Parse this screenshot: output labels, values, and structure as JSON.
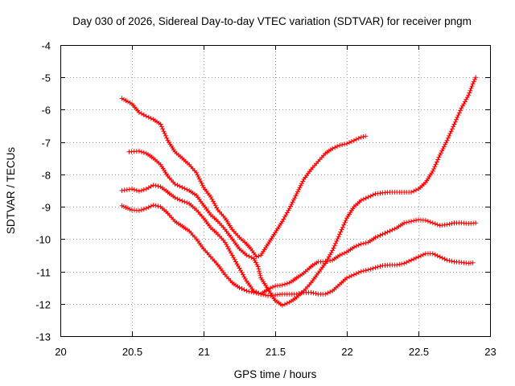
{
  "chart_data": {
    "type": "scatter",
    "title": "Day 030 of 2026, Sidereal Day-to-day VTEC variation (SDTVAR) for receiver pngm",
    "xlabel": "GPS time / hours",
    "ylabel": "SDTVAR / TECUs",
    "xlim": [
      20,
      23
    ],
    "ylim": [
      -13,
      -4
    ],
    "xticks": [
      "20",
      "20.5",
      "21",
      "21.5",
      "22",
      "22.5",
      "23"
    ],
    "yticks": [
      "-13",
      "-12",
      "-11",
      "-10",
      "-9",
      "-8",
      "-7",
      "-6",
      "-5",
      "-4"
    ],
    "xtick_values": [
      20,
      20.5,
      21,
      21.5,
      22,
      22.5,
      23
    ],
    "ytick_values": [
      -13,
      -12,
      -11,
      -10,
      -9,
      -8,
      -7,
      -6,
      -5,
      -4
    ],
    "grid": true,
    "marker": "plus",
    "color": "#ff0000",
    "series": [
      {
        "points": [
          [
            20.43,
            -5.65
          ],
          [
            20.5,
            -5.82
          ],
          [
            20.55,
            -6.08
          ],
          [
            20.6,
            -6.2
          ],
          [
            20.65,
            -6.3
          ],
          [
            20.7,
            -6.45
          ],
          [
            20.75,
            -6.95
          ],
          [
            20.8,
            -7.3
          ],
          [
            20.85,
            -7.5
          ],
          [
            20.9,
            -7.7
          ],
          [
            20.95,
            -7.95
          ],
          [
            21.0,
            -8.4
          ],
          [
            21.05,
            -8.7
          ],
          [
            21.1,
            -9.1
          ],
          [
            21.15,
            -9.35
          ],
          [
            21.2,
            -9.7
          ],
          [
            21.25,
            -9.95
          ],
          [
            21.3,
            -10.15
          ],
          [
            21.33,
            -10.3
          ],
          [
            21.37,
            -10.55
          ],
          [
            21.4,
            -10.5
          ],
          [
            21.45,
            -10.15
          ],
          [
            21.5,
            -9.8
          ],
          [
            21.55,
            -9.45
          ],
          [
            21.6,
            -9.05
          ],
          [
            21.65,
            -8.6
          ],
          [
            21.7,
            -8.15
          ],
          [
            21.75,
            -7.85
          ],
          [
            21.8,
            -7.6
          ],
          [
            21.85,
            -7.35
          ],
          [
            21.9,
            -7.2
          ],
          [
            21.95,
            -7.1
          ],
          [
            22.0,
            -7.05
          ],
          [
            22.05,
            -6.95
          ],
          [
            22.1,
            -6.85
          ],
          [
            22.13,
            -6.82
          ]
        ]
      },
      {
        "points": [
          [
            20.48,
            -7.3
          ],
          [
            20.55,
            -7.28
          ],
          [
            20.6,
            -7.35
          ],
          [
            20.65,
            -7.5
          ],
          [
            20.7,
            -7.7
          ],
          [
            20.75,
            -8.05
          ],
          [
            20.8,
            -8.3
          ],
          [
            20.85,
            -8.4
          ],
          [
            20.9,
            -8.5
          ],
          [
            20.95,
            -8.65
          ],
          [
            21.0,
            -8.95
          ],
          [
            21.05,
            -9.25
          ],
          [
            21.1,
            -9.45
          ],
          [
            21.15,
            -9.7
          ],
          [
            21.2,
            -10.0
          ],
          [
            21.25,
            -10.3
          ],
          [
            21.3,
            -10.5
          ],
          [
            21.35,
            -10.6
          ],
          [
            21.38,
            -10.85
          ],
          [
            21.4,
            -11.2
          ],
          [
            21.45,
            -11.55
          ],
          [
            21.5,
            -11.9
          ],
          [
            21.55,
            -12.05
          ],
          [
            21.6,
            -11.95
          ],
          [
            21.65,
            -11.8
          ],
          [
            21.7,
            -11.6
          ],
          [
            21.75,
            -11.35
          ],
          [
            21.8,
            -11.05
          ],
          [
            21.85,
            -10.75
          ],
          [
            21.9,
            -10.35
          ],
          [
            21.95,
            -9.85
          ],
          [
            22.0,
            -9.35
          ],
          [
            22.05,
            -9.0
          ],
          [
            22.1,
            -8.8
          ],
          [
            22.15,
            -8.7
          ],
          [
            22.2,
            -8.6
          ],
          [
            22.25,
            -8.57
          ],
          [
            22.3,
            -8.55
          ],
          [
            22.35,
            -8.55
          ],
          [
            22.4,
            -8.55
          ],
          [
            22.45,
            -8.55
          ],
          [
            22.5,
            -8.45
          ],
          [
            22.55,
            -8.25
          ],
          [
            22.6,
            -7.9
          ],
          [
            22.65,
            -7.4
          ],
          [
            22.7,
            -6.95
          ],
          [
            22.75,
            -6.45
          ],
          [
            22.8,
            -5.95
          ],
          [
            22.85,
            -5.55
          ],
          [
            22.88,
            -5.2
          ],
          [
            22.9,
            -5.0
          ]
        ]
      },
      {
        "points": [
          [
            20.43,
            -8.5
          ],
          [
            20.5,
            -8.45
          ],
          [
            20.55,
            -8.52
          ],
          [
            20.6,
            -8.45
          ],
          [
            20.65,
            -8.33
          ],
          [
            20.7,
            -8.38
          ],
          [
            20.75,
            -8.55
          ],
          [
            20.8,
            -8.72
          ],
          [
            20.85,
            -8.82
          ],
          [
            20.9,
            -8.9
          ],
          [
            20.95,
            -9.1
          ],
          [
            21.0,
            -9.35
          ],
          [
            21.05,
            -9.65
          ],
          [
            21.1,
            -9.85
          ],
          [
            21.15,
            -10.1
          ],
          [
            21.2,
            -10.5
          ],
          [
            21.25,
            -10.9
          ],
          [
            21.3,
            -11.3
          ],
          [
            21.35,
            -11.6
          ],
          [
            21.4,
            -11.7
          ],
          [
            21.45,
            -11.55
          ],
          [
            21.5,
            -11.45
          ],
          [
            21.55,
            -11.42
          ],
          [
            21.6,
            -11.35
          ],
          [
            21.65,
            -11.2
          ],
          [
            21.7,
            -11.05
          ],
          [
            21.75,
            -10.85
          ],
          [
            21.8,
            -10.7
          ],
          [
            21.85,
            -10.7
          ],
          [
            21.9,
            -10.65
          ],
          [
            21.95,
            -10.5
          ],
          [
            22.0,
            -10.4
          ],
          [
            22.05,
            -10.25
          ],
          [
            22.1,
            -10.15
          ],
          [
            22.15,
            -10.1
          ],
          [
            22.2,
            -9.95
          ],
          [
            22.25,
            -9.85
          ],
          [
            22.3,
            -9.75
          ],
          [
            22.35,
            -9.65
          ],
          [
            22.4,
            -9.5
          ],
          [
            22.45,
            -9.45
          ],
          [
            22.5,
            -9.4
          ],
          [
            22.55,
            -9.42
          ],
          [
            22.6,
            -9.5
          ],
          [
            22.65,
            -9.58
          ],
          [
            22.7,
            -9.55
          ],
          [
            22.75,
            -9.5
          ],
          [
            22.8,
            -9.5
          ],
          [
            22.85,
            -9.52
          ],
          [
            22.9,
            -9.5
          ]
        ]
      },
      {
        "points": [
          [
            20.43,
            -8.97
          ],
          [
            20.5,
            -9.1
          ],
          [
            20.55,
            -9.12
          ],
          [
            20.6,
            -9.05
          ],
          [
            20.65,
            -8.95
          ],
          [
            20.7,
            -9.0
          ],
          [
            20.75,
            -9.2
          ],
          [
            20.8,
            -9.45
          ],
          [
            20.85,
            -9.6
          ],
          [
            20.9,
            -9.75
          ],
          [
            20.95,
            -10.0
          ],
          [
            21.0,
            -10.3
          ],
          [
            21.05,
            -10.55
          ],
          [
            21.1,
            -10.8
          ],
          [
            21.15,
            -11.1
          ],
          [
            21.2,
            -11.35
          ],
          [
            21.25,
            -11.5
          ],
          [
            21.3,
            -11.6
          ],
          [
            21.35,
            -11.65
          ],
          [
            21.4,
            -11.7
          ],
          [
            21.45,
            -11.75
          ],
          [
            21.5,
            -11.73
          ],
          [
            21.55,
            -11.7
          ],
          [
            21.6,
            -11.7
          ],
          [
            21.65,
            -11.7
          ],
          [
            21.7,
            -11.65
          ],
          [
            21.75,
            -11.65
          ],
          [
            21.8,
            -11.7
          ],
          [
            21.85,
            -11.7
          ],
          [
            21.9,
            -11.6
          ],
          [
            21.95,
            -11.4
          ],
          [
            22.0,
            -11.2
          ],
          [
            22.05,
            -11.1
          ],
          [
            22.1,
            -11.0
          ],
          [
            22.15,
            -10.95
          ],
          [
            22.2,
            -10.88
          ],
          [
            22.25,
            -10.82
          ],
          [
            22.3,
            -10.8
          ],
          [
            22.35,
            -10.8
          ],
          [
            22.4,
            -10.75
          ],
          [
            22.45,
            -10.65
          ],
          [
            22.5,
            -10.55
          ],
          [
            22.55,
            -10.45
          ],
          [
            22.6,
            -10.45
          ],
          [
            22.65,
            -10.55
          ],
          [
            22.7,
            -10.65
          ],
          [
            22.75,
            -10.7
          ],
          [
            22.8,
            -10.72
          ],
          [
            22.85,
            -10.75
          ],
          [
            22.88,
            -10.73
          ]
        ]
      }
    ]
  }
}
